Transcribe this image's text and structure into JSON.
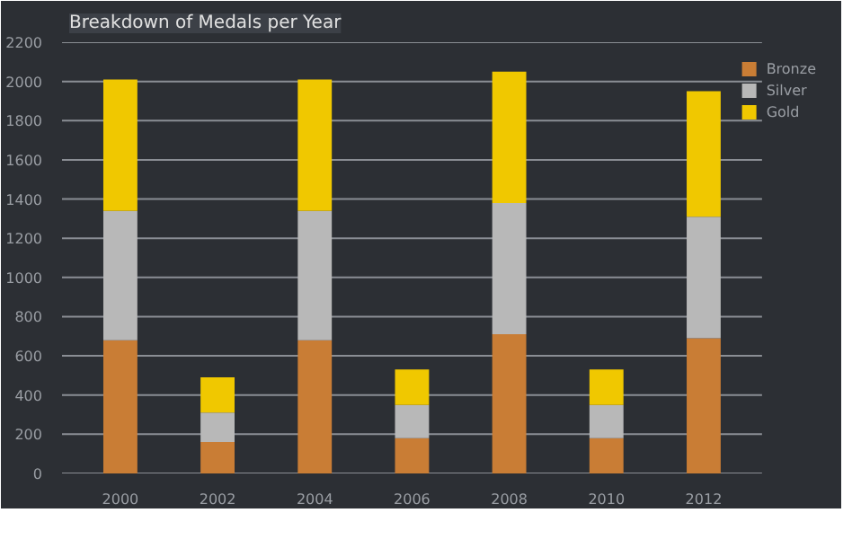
{
  "chart_data": {
    "type": "bar",
    "title": "Breakdown of Medals per Year",
    "stacked": true,
    "categories": [
      "2000",
      "2002",
      "2004",
      "2006",
      "2008",
      "2010",
      "2012"
    ],
    "series": [
      {
        "name": "Bronze",
        "color": "#c97d35",
        "values": [
          680,
          160,
          680,
          180,
          710,
          180,
          690
        ]
      },
      {
        "name": "Silver",
        "color": "#b8b8b8",
        "values": [
          660,
          150,
          660,
          170,
          670,
          170,
          620
        ]
      },
      {
        "name": "Gold",
        "color": "#f0c800",
        "values": [
          670,
          180,
          670,
          180,
          670,
          180,
          640
        ]
      }
    ],
    "ylim": [
      0,
      2200
    ],
    "yticks": [
      0,
      200,
      400,
      600,
      800,
      1000,
      1200,
      1400,
      1600,
      1800,
      2000,
      2200
    ],
    "grid": "y",
    "legend": "top right"
  }
}
